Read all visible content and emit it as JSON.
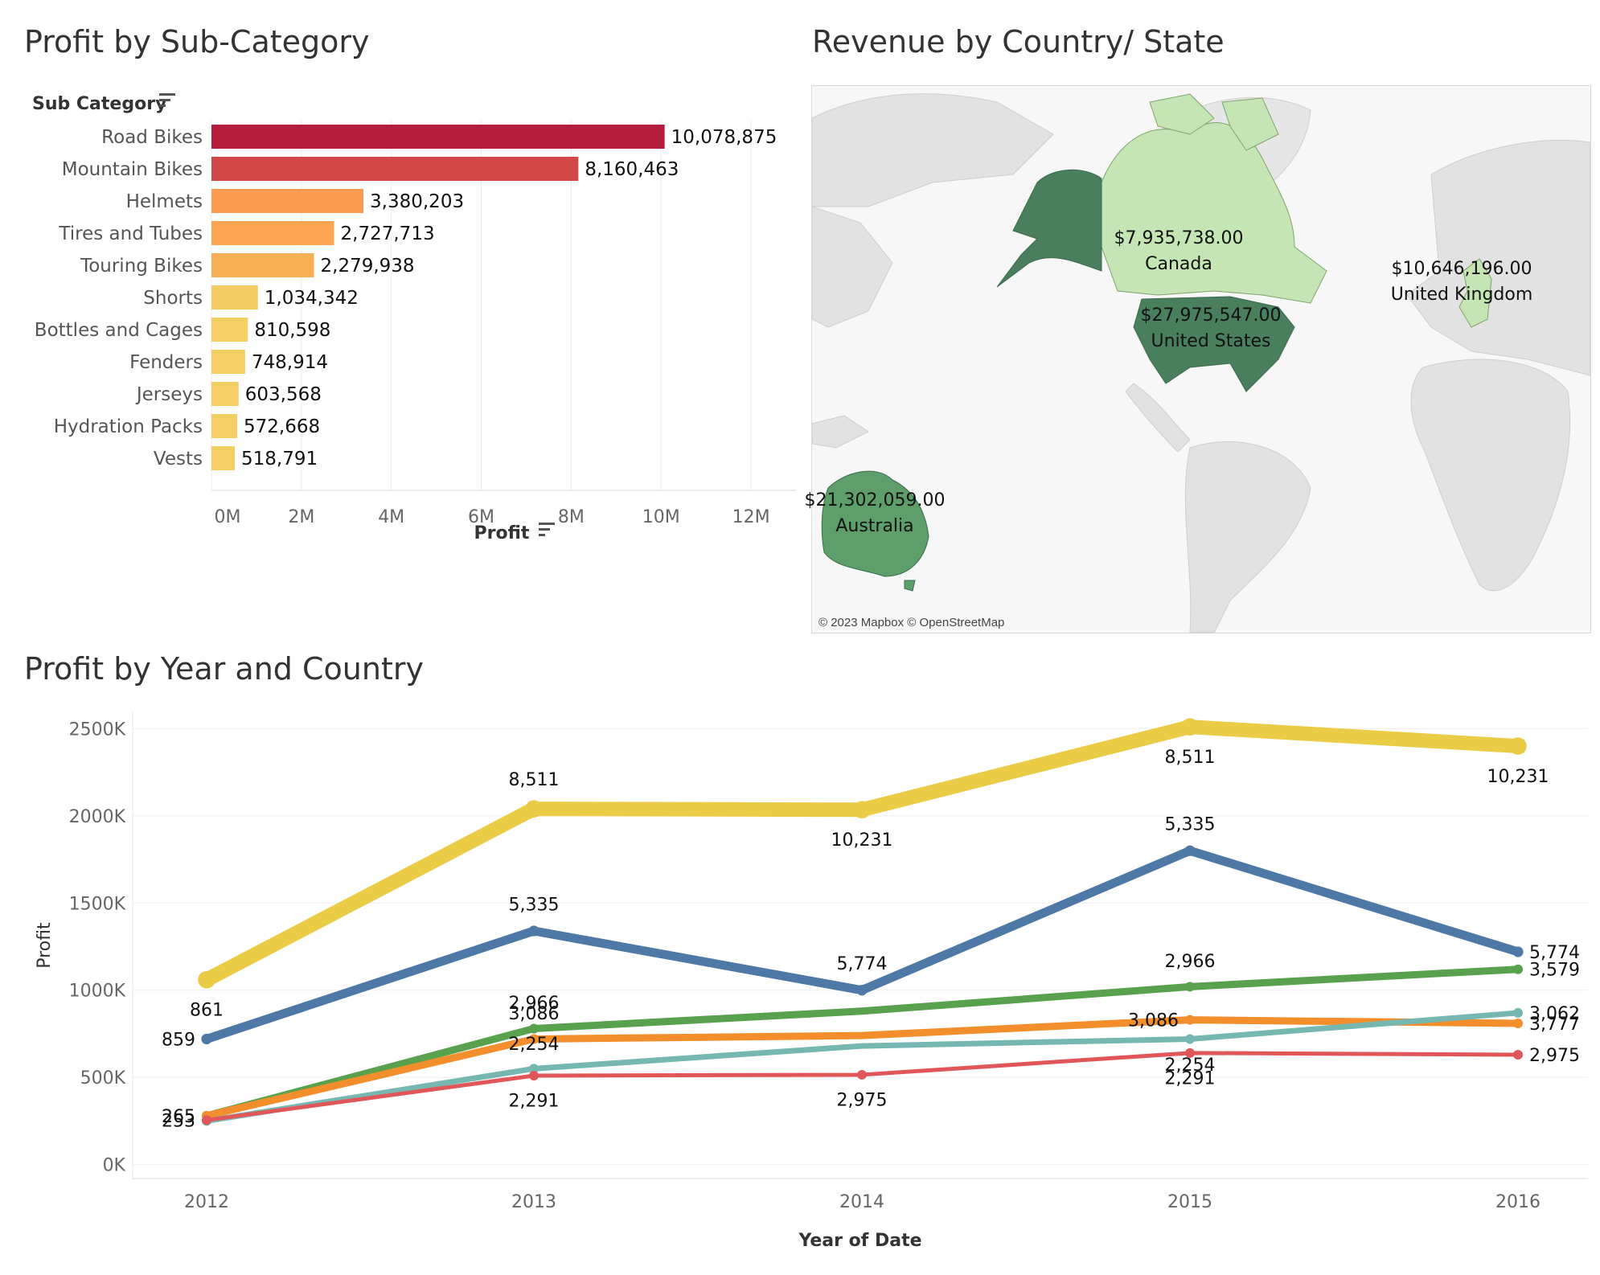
{
  "bar_panel": {
    "title": "Profit by Sub-Category",
    "dimension_label": "Sub Category",
    "measure_label": "Profit"
  },
  "map_panel": {
    "title": "Revenue by Country/ State",
    "credit": "© 2023 Mapbox © OpenStreetMap",
    "regions": [
      {
        "name": "Canada",
        "value": "$7,935,738.00",
        "color": "#c5e5b4"
      },
      {
        "name": "United States",
        "value": "$27,975,547.00",
        "color": "#4a7f5e"
      },
      {
        "name": "United Kingdom",
        "value": "$10,646,196.00",
        "color": "#c5e5b4"
      },
      {
        "name": "Australia",
        "value": "$21,302,059.00",
        "color": "#5e9e6a"
      }
    ],
    "alaska_color": "#4a7f5e"
  },
  "line_panel": {
    "title": "Profit by Year and Country"
  },
  "chart_data": [
    {
      "type": "bar",
      "orientation": "horizontal",
      "categories": [
        "Road Bikes",
        "Mountain Bikes",
        "Helmets",
        "Tires and Tubes",
        "Touring Bikes",
        "Shorts",
        "Bottles and Cages",
        "Fenders",
        "Jerseys",
        "Hydration Packs",
        "Vests"
      ],
      "values": [
        10078875,
        8160463,
        3380203,
        2727713,
        2279938,
        1034342,
        810598,
        748914,
        603568,
        572668,
        518791
      ],
      "value_labels": [
        "10,078,875",
        "8,160,463",
        "3,380,203",
        "2,727,713",
        "2,279,938",
        "1,034,342",
        "810,598",
        "748,914",
        "603,568",
        "572,668",
        "518,791"
      ],
      "colors": [
        "#b51d3f",
        "#d24748",
        "#f99c52",
        "#f9a552",
        "#f7af55",
        "#f3cc63",
        "#f3cf64",
        "#f3cf64",
        "#f3cf64",
        "#f3cf64",
        "#f3cf64"
      ],
      "xlabel": "Profit",
      "ylabel": "Sub Category",
      "xlim": [
        0,
        13000000
      ],
      "xticks": [
        0,
        2000000,
        4000000,
        6000000,
        8000000,
        10000000,
        12000000
      ],
      "xtick_labels": [
        "0M",
        "2M",
        "4M",
        "6M",
        "8M",
        "10M",
        "12M"
      ],
      "grid": true
    },
    {
      "type": "line",
      "x": [
        2012,
        2013,
        2014,
        2015,
        2016
      ],
      "xlabel": "Year of Date",
      "ylabel": "Profit",
      "ylim": [
        -80000,
        2640000
      ],
      "yticks": [
        0,
        500000,
        1000000,
        1500000,
        2000000,
        2500000
      ],
      "ytick_labels": [
        "0K",
        "500K",
        "1000K",
        "1500K",
        "2000K",
        "2500K"
      ],
      "grid": true,
      "series": [
        {
          "color": "#ebcc47",
          "width": 18,
          "values": [
            1060000,
            2040000,
            2035000,
            2510000,
            2400000
          ],
          "labels": [
            "861",
            "8,511",
            "10,231",
            "8,511",
            "10,231"
          ],
          "label_pos": [
            "below",
            "above",
            "below",
            "below",
            "below"
          ],
          "markers": [
            true,
            true,
            true,
            true,
            true
          ]
        },
        {
          "color": "#4e79a7",
          "width": 11,
          "values": [
            720000,
            1340000,
            1000000,
            1800000,
            1220000
          ],
          "labels": [
            "859",
            "5,335",
            "5,774",
            "5,335",
            "5,774"
          ],
          "label_pos": [
            "left",
            "above",
            "above",
            "above",
            "right"
          ],
          "markers": [
            true,
            true,
            true,
            true,
            true
          ]
        },
        {
          "color": "#59a14f",
          "width": 9,
          "values": [
            280000,
            780000,
            880000,
            1020000,
            1120000
          ],
          "labels": [
            "265",
            "2,966",
            "",
            "2,966",
            "3,579"
          ],
          "label_pos": [
            "left",
            "above",
            "none",
            "above",
            "right"
          ],
          "markers": [
            true,
            true,
            false,
            true,
            true
          ]
        },
        {
          "color": "#f28e2b",
          "width": 9,
          "values": [
            280000,
            720000,
            740000,
            830000,
            810000
          ],
          "labels": [
            "",
            "3,086",
            "",
            "3,086",
            "3,777"
          ],
          "label_pos": [
            "none",
            "above",
            "none",
            "left",
            "right"
          ],
          "markers": [
            true,
            true,
            false,
            true,
            true
          ]
        },
        {
          "color": "#76b7b2",
          "width": 7,
          "values": [
            250000,
            550000,
            680000,
            720000,
            870000
          ],
          "labels": [
            "",
            "2,254",
            "",
            "2,254",
            "3,062"
          ],
          "label_pos": [
            "none",
            "above",
            "none",
            "below",
            "right"
          ],
          "markers": [
            true,
            true,
            false,
            true,
            true
          ]
        },
        {
          "color": "#e15759",
          "width": 5,
          "values": [
            255000,
            510000,
            515000,
            640000,
            630000
          ],
          "labels": [
            "253",
            "2,291",
            "2,975",
            "2,291",
            "2,975"
          ],
          "label_pos": [
            "left",
            "below",
            "below",
            "below",
            "right"
          ],
          "markers": [
            true,
            true,
            true,
            true,
            true
          ]
        }
      ]
    }
  ]
}
